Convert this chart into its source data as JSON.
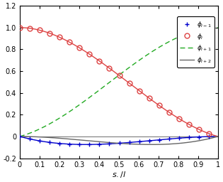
{
  "title": "",
  "xlabel": "$s_{.}/l$",
  "ylabel": "",
  "xlim": [
    0,
    1
  ],
  "ylim": [
    -0.2,
    1.2
  ],
  "yticks": [
    -0.2,
    0.0,
    0.2,
    0.4,
    0.6,
    0.8,
    1.0,
    1.2
  ],
  "xticks": [
    0.0,
    0.1,
    0.2,
    0.3,
    0.4,
    0.5,
    0.6,
    0.7,
    0.8,
    0.9,
    1.0
  ],
  "legend_labels": [
    "$\\phi_{i-1}$",
    "$\\phi_i$",
    "$\\phi_{i+1}$",
    "$\\phi_{i+2}$"
  ],
  "colors": {
    "phi_im1": "#0000cc",
    "phi_i": "#dd4444",
    "phi_ip1": "#22aa22",
    "phi_ip2": "#666666"
  },
  "bg_color": "#f8f8f8",
  "n_points": 200,
  "marker_every": 10
}
